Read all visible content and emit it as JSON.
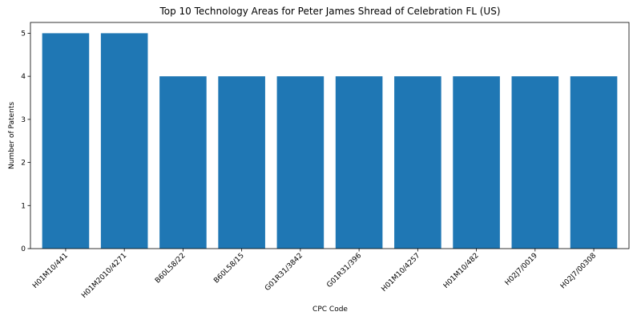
{
  "chart_data": {
    "type": "bar",
    "title": "Top 10 Technology Areas for Peter James Shread of Celebration FL (US)",
    "xlabel": "CPC Code",
    "ylabel": "Number of Patents",
    "categories": [
      "H01M10/441",
      "H01M2010/4271",
      "B60L58/22",
      "B60L58/15",
      "G01R31/3842",
      "G01R31/396",
      "H01M10/4257",
      "H01M10/482",
      "H02J7/0019",
      "H02J7/00308"
    ],
    "values": [
      5,
      5,
      4,
      4,
      4,
      4,
      4,
      4,
      4,
      4
    ],
    "ylim": [
      0,
      5.25
    ],
    "yticks": [
      0,
      1,
      2,
      3,
      4,
      5
    ],
    "grid": false,
    "legend": "none",
    "bar_color": "#1f77b4"
  }
}
